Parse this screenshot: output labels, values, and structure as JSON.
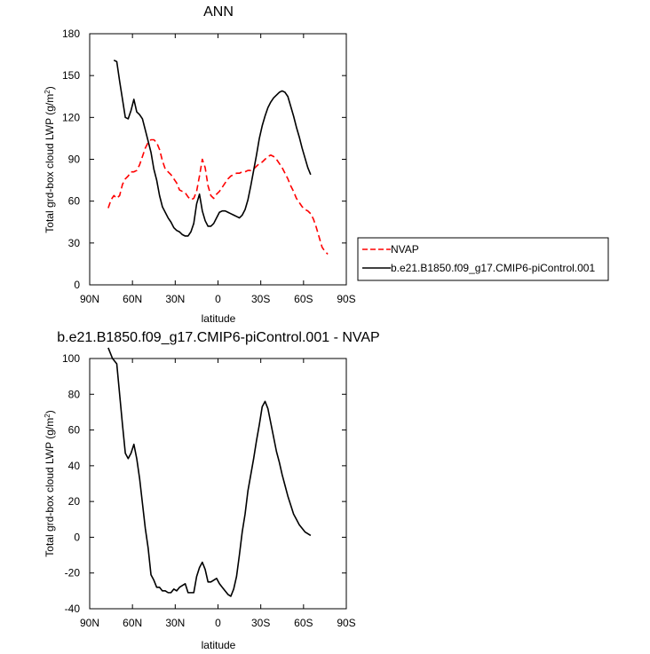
{
  "chart_data": [
    {
      "type": "line",
      "title": "ANN",
      "xlabel": "latitude",
      "ylabel": "Total grd-box cloud LWP (g/m",
      "ylabel_sup": "2",
      "ylabel_close": ")",
      "xlim": [
        90,
        -90
      ],
      "ylim": [
        0,
        180
      ],
      "xticks": [
        {
          "v": 90,
          "label": "90N"
        },
        {
          "v": 60,
          "label": "60N"
        },
        {
          "v": 30,
          "label": "30N"
        },
        {
          "v": 0,
          "label": "0"
        },
        {
          "v": -30,
          "label": "30S"
        },
        {
          "v": -60,
          "label": "60S"
        },
        {
          "v": -90,
          "label": "90S"
        }
      ],
      "yticks": [
        0,
        30,
        60,
        90,
        120,
        150,
        180
      ],
      "legend": {
        "placement": "outside-right"
      },
      "series": [
        {
          "name": "NVAP",
          "color": "#ff0000",
          "dash": "dashed",
          "x": [
            77,
            75,
            73,
            71,
            69,
            67,
            65,
            63,
            61,
            59,
            57,
            55,
            53,
            51,
            49,
            47,
            45,
            43,
            41,
            39,
            37,
            35,
            33,
            31,
            29,
            27,
            25,
            23,
            21,
            19,
            17,
            15,
            13,
            11,
            9,
            7,
            5,
            3,
            1,
            -1,
            -3,
            -5,
            -7,
            -9,
            -11,
            -13,
            -15,
            -17,
            -19,
            -21,
            -23,
            -25,
            -27,
            -29,
            -31,
            -33,
            -35,
            -37,
            -39,
            -41,
            -43,
            -45,
            -47,
            -49,
            -51,
            -53,
            -55,
            -57,
            -59,
            -61,
            -63,
            -65,
            -67,
            -69,
            -71,
            -73,
            -75,
            -77
          ],
          "y": [
            55,
            61,
            64,
            62,
            64,
            72,
            76,
            78,
            81,
            81,
            82,
            86,
            92,
            98,
            102,
            104,
            104,
            102,
            97,
            89,
            83,
            81,
            79,
            76,
            73,
            68,
            67,
            66,
            63,
            61,
            62,
            67,
            78,
            90,
            84,
            71,
            64,
            62,
            65,
            67,
            70,
            73,
            76,
            78,
            79,
            80,
            80,
            81,
            81,
            82,
            82,
            83,
            85,
            87,
            88,
            90,
            92,
            93,
            92,
            90,
            87,
            84,
            80,
            76,
            71,
            67,
            62,
            59,
            56,
            54,
            53,
            51,
            47,
            41,
            34,
            27,
            24,
            22
          ]
        },
        {
          "name": "b.e21.B1850.f09_g17.CMIP6-piControl.001",
          "color": "#000000",
          "dash": "solid",
          "x": [
            73,
            71,
            69,
            67,
            65,
            63,
            61,
            59,
            57,
            55,
            53,
            51,
            49,
            47,
            45,
            43,
            41,
            39,
            37,
            35,
            33,
            31,
            29,
            27,
            25,
            23,
            21,
            19,
            17,
            15,
            13,
            11,
            9,
            7,
            5,
            3,
            1,
            -1,
            -3,
            -5,
            -7,
            -9,
            -11,
            -13,
            -15,
            -17,
            -19,
            -21,
            -23,
            -25,
            -27,
            -29,
            -31,
            -33,
            -35,
            -37,
            -39,
            -41,
            -43,
            -45,
            -47,
            -49,
            -51,
            -53,
            -55,
            -57,
            -59,
            -61,
            -63,
            -65
          ],
          "y": [
            161,
            160,
            146,
            133,
            120,
            119,
            125,
            133,
            124,
            122,
            119,
            111,
            103,
            95,
            83,
            75,
            64,
            56,
            52,
            48,
            45,
            41,
            39,
            38,
            36,
            35,
            35,
            38,
            44,
            58,
            65,
            53,
            46,
            42,
            42,
            44,
            48,
            52,
            53,
            53,
            52,
            51,
            50,
            49,
            48,
            50,
            54,
            61,
            71,
            82,
            93,
            105,
            114,
            121,
            127,
            131,
            134,
            136,
            138,
            139,
            138,
            135,
            128,
            121,
            113,
            106,
            98,
            91,
            84,
            79
          ]
        }
      ]
    },
    {
      "type": "line",
      "title": "b.e21.B1850.f09_g17.CMIP6-piControl.001 - NVAP",
      "xlabel": "latitude",
      "ylabel": "Total grd-box cloud LWP (g/m",
      "ylabel_sup": "2",
      "ylabel_close": ")",
      "xlim": [
        90,
        -90
      ],
      "ylim": [
        -40,
        100
      ],
      "xticks": [
        {
          "v": 90,
          "label": "90N"
        },
        {
          "v": 60,
          "label": "60N"
        },
        {
          "v": 30,
          "label": "30N"
        },
        {
          "v": 0,
          "label": "0"
        },
        {
          "v": -30,
          "label": "30S"
        },
        {
          "v": -60,
          "label": "60S"
        },
        {
          "v": -90,
          "label": "90S"
        }
      ],
      "yticks": [
        -40,
        -20,
        0,
        20,
        40,
        60,
        80,
        100
      ],
      "series": [
        {
          "color": "#000000",
          "dash": "solid",
          "x": [
            77,
            74,
            71,
            69,
            67,
            65,
            63,
            61,
            59,
            57,
            55,
            53,
            51,
            49,
            47,
            45,
            43,
            41,
            39,
            37,
            35,
            33,
            31,
            29,
            27,
            25,
            23,
            21,
            19,
            17,
            15,
            13,
            11,
            9,
            7,
            5,
            3,
            1,
            -1,
            -3,
            -5,
            -7,
            -9,
            -11,
            -13,
            -15,
            -17,
            -19,
            -21,
            -23,
            -25,
            -27,
            -29,
            -31,
            -33,
            -35,
            -37,
            -39,
            -41,
            -43,
            -45,
            -47,
            -49,
            -51,
            -53,
            -55,
            -57,
            -59,
            -61,
            -63,
            -65
          ],
          "y": [
            106,
            100,
            97,
            80,
            63,
            47,
            44,
            47,
            52,
            44,
            33,
            19,
            5,
            -6,
            -21,
            -24,
            -28,
            -28,
            -30,
            -30,
            -31,
            -31,
            -29,
            -30,
            -28,
            -27,
            -26,
            -31,
            -31,
            -31,
            -22,
            -17,
            -14,
            -18,
            -25,
            -25,
            -24,
            -23,
            -26,
            -28,
            -30,
            -32,
            -33,
            -29,
            -22,
            -10,
            3,
            13,
            26,
            35,
            44,
            54,
            63,
            73,
            76,
            72,
            64,
            56,
            48,
            42,
            35,
            29,
            23,
            18,
            13,
            10,
            7,
            5,
            3,
            2,
            1
          ]
        }
      ]
    }
  ]
}
